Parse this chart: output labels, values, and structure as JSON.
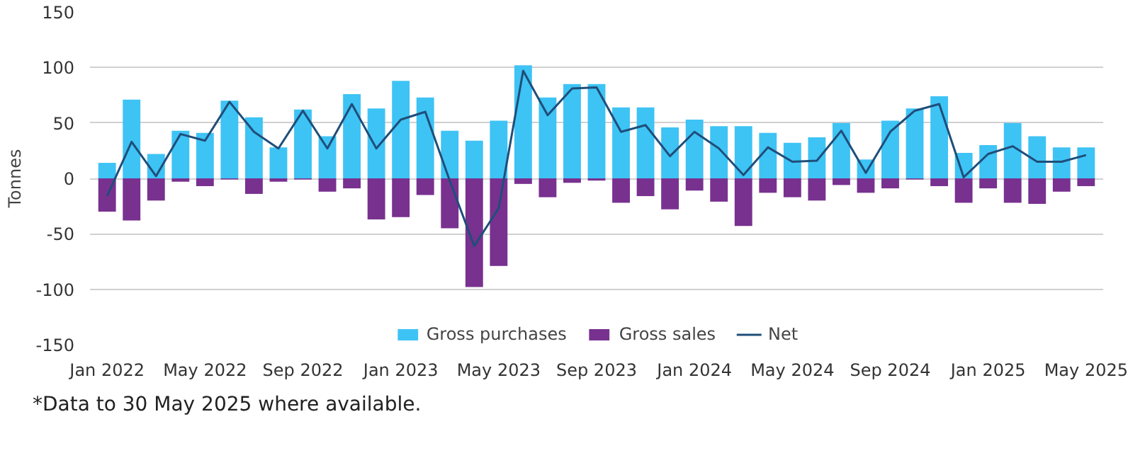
{
  "chart_data": {
    "type": "bar",
    "stacked": true,
    "ylabel": "Tonnes",
    "categories": [
      "Jan 2022",
      null,
      null,
      null,
      "May 2022",
      null,
      null,
      null,
      "Sep 2022",
      null,
      null,
      null,
      "Jan 2023",
      null,
      null,
      null,
      "May 2023",
      null,
      null,
      null,
      "Sep 2023",
      null,
      null,
      null,
      "Jan 2024",
      null,
      null,
      null,
      "May 2024",
      null,
      null,
      null,
      "Sep 2024",
      null,
      null,
      null,
      "Jan 2025",
      null,
      null,
      null,
      "May 2025"
    ],
    "series": [
      {
        "name": "Gross purchases",
        "color": "#3ec3f5",
        "values": [
          14,
          71,
          22,
          43,
          41,
          70,
          55,
          28,
          62,
          38,
          76,
          63,
          88,
          73,
          43,
          34,
          52,
          102,
          73,
          85,
          85,
          64,
          64,
          46,
          53,
          47,
          47,
          41,
          32,
          37,
          50,
          17,
          52,
          63,
          74,
          23,
          30,
          50,
          38,
          28,
          28
        ]
      },
      {
        "name": "Gross sales",
        "color": "#78318f",
        "values": [
          -30,
          -38,
          -20,
          -3,
          -7,
          -1,
          -14,
          -3,
          -1,
          -12,
          -9,
          -37,
          -35,
          -15,
          -45,
          -98,
          -79,
          -5,
          -17,
          -4,
          -2,
          -22,
          -16,
          -28,
          -11,
          -21,
          -43,
          -13,
          -17,
          -20,
          -6,
          -13,
          -9,
          -1,
          -7,
          -22,
          -9,
          -22,
          -23,
          -12,
          -7
        ]
      },
      {
        "name": "Net",
        "type": "line",
        "color": "#1f4e79",
        "values": [
          -16,
          33,
          2,
          40,
          34,
          69,
          42,
          27,
          61,
          27,
          67,
          27,
          53,
          60,
          -2,
          -61,
          -27,
          97,
          57,
          81,
          82,
          42,
          48,
          20,
          42,
          27,
          3,
          28,
          15,
          16,
          43,
          5,
          42,
          61,
          67,
          1,
          22,
          29,
          15,
          15,
          21
        ]
      }
    ],
    "ylim": [
      -150,
      150
    ],
    "yticks": [
      -150,
      -100,
      -50,
      0,
      50,
      100,
      150
    ],
    "grid": "y",
    "legend": "bottom",
    "annotations": [
      "*Data to 30 May 2025 where available."
    ]
  }
}
